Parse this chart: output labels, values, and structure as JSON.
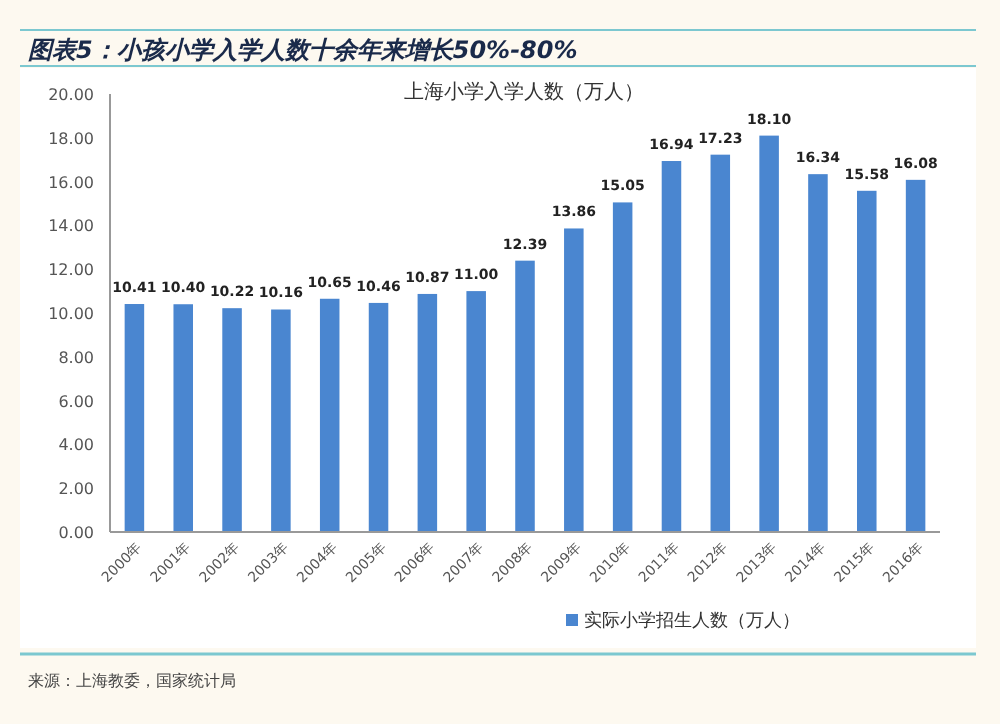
{
  "chart_data": {
    "type": "bar",
    "title": "图表5：小孩小学入学人数十余年来增长50%-80%",
    "subtitle": "上海小学入学人数（万人）",
    "categories": [
      "2000年",
      "2001年",
      "2002年",
      "2003年",
      "2004年",
      "2005年",
      "2006年",
      "2007年",
      "2008年",
      "2009年",
      "2010年",
      "2011年",
      "2012年",
      "2013年",
      "2014年",
      "2015年",
      "2016年"
    ],
    "series": [
      {
        "name": "实际小学招生人数（万人）",
        "color": "#4a86d0",
        "values": [
          10.41,
          10.4,
          10.22,
          10.16,
          10.65,
          10.46,
          10.87,
          11.0,
          12.39,
          13.86,
          15.05,
          16.94,
          17.23,
          18.1,
          16.34,
          15.58,
          16.08
        ],
        "value_labels": [
          "10.41",
          "10.40",
          "10.22",
          "10.16",
          "10.65",
          "10.46",
          "10.87",
          "11.00",
          "12.39",
          "13.86",
          "15.05",
          "16.94",
          "17.23",
          "18.10",
          "16.34",
          "15.58",
          "16.08"
        ]
      }
    ],
    "ylim": [
      0,
      20
    ],
    "yticks": [
      {
        "value": 0,
        "label": "0.00"
      },
      {
        "value": 2,
        "label": "2.00"
      },
      {
        "value": 4,
        "label": "4.00"
      },
      {
        "value": 6,
        "label": "6.00"
      },
      {
        "value": 8,
        "label": "8.00"
      },
      {
        "value": 10,
        "label": "10.00"
      },
      {
        "value": 12,
        "label": "12.00"
      },
      {
        "value": 14,
        "label": "14.00"
      },
      {
        "value": 16,
        "label": "16.00"
      },
      {
        "value": 18,
        "label": "18.00"
      },
      {
        "value": 20,
        "label": "20.00"
      }
    ],
    "legend": "bottom",
    "annotations": [
      "来源：上海教委，国家统计局"
    ]
  }
}
